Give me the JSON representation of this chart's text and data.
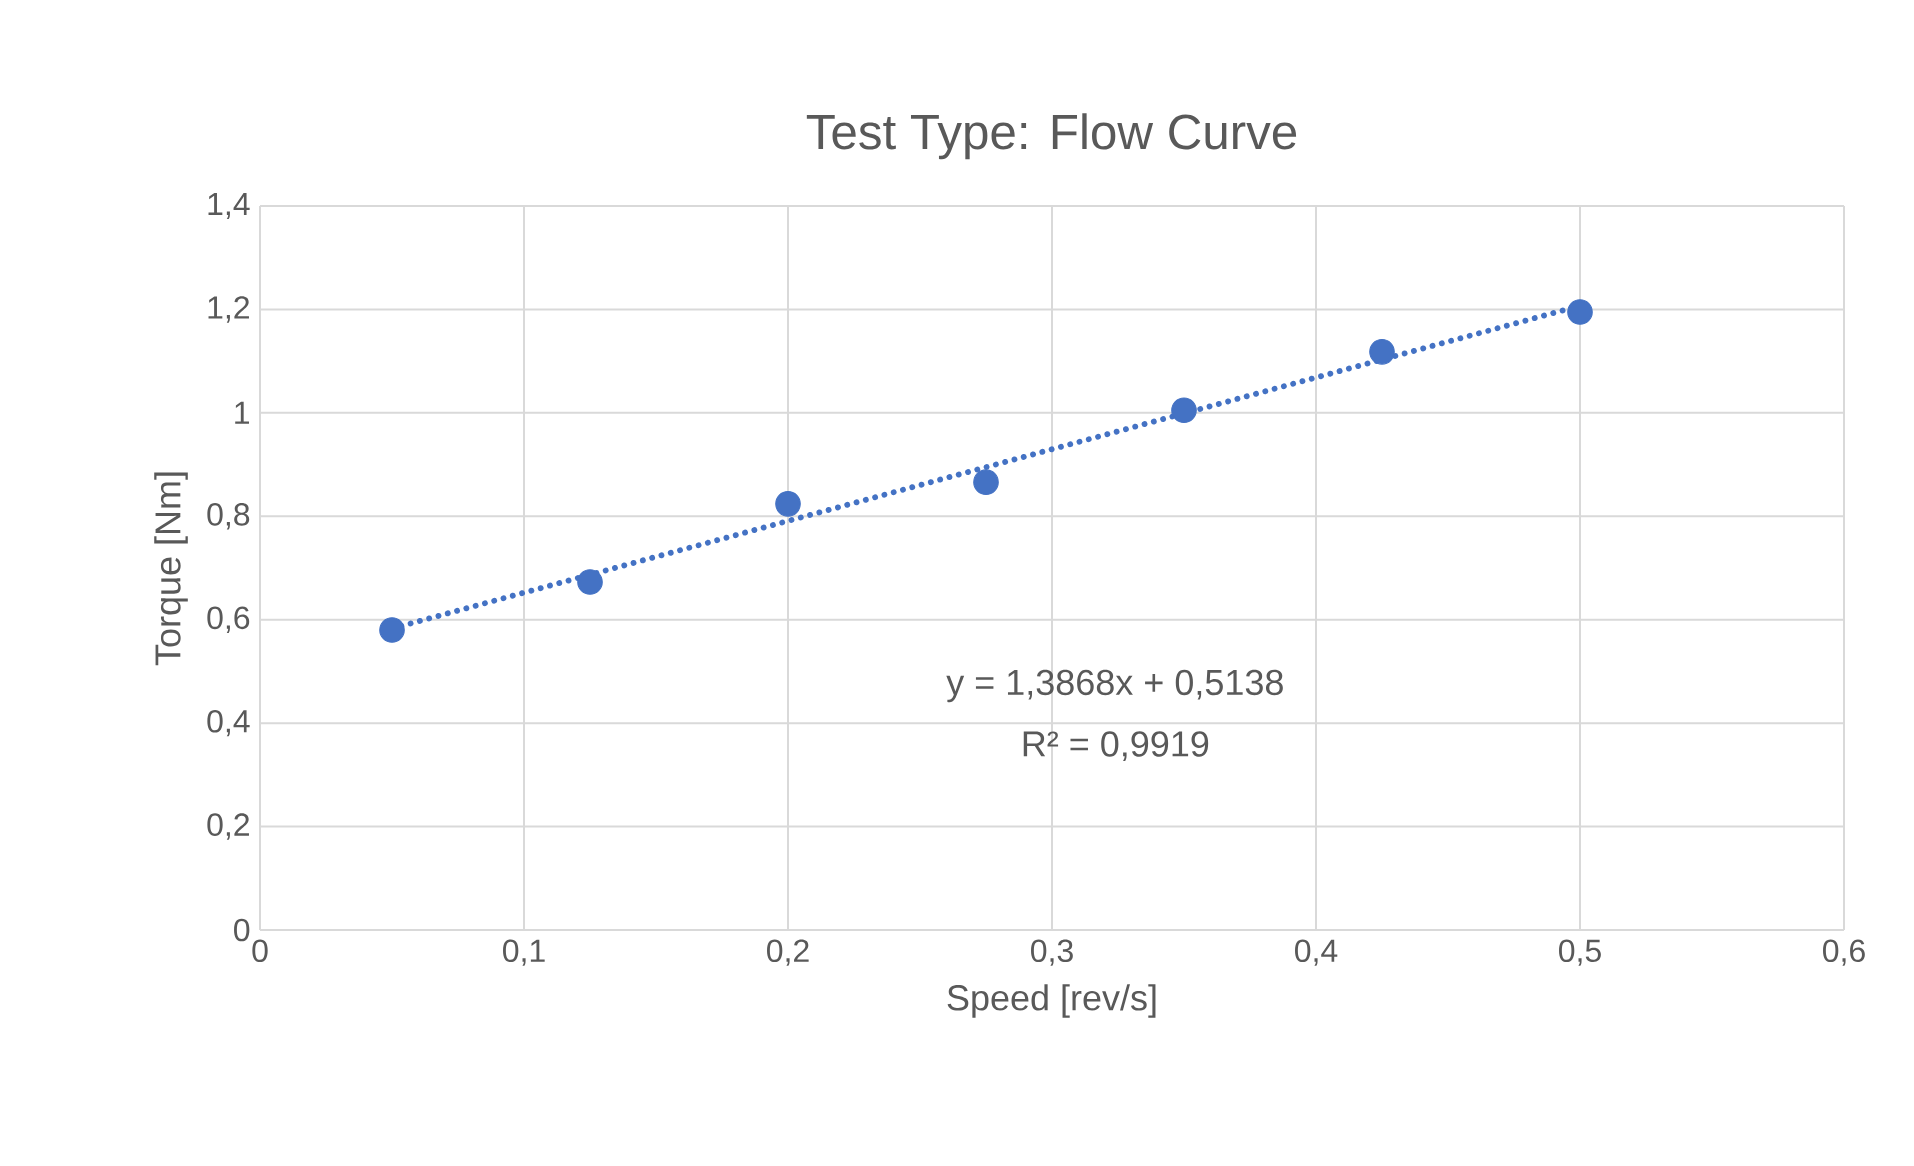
{
  "chart_data": {
    "type": "scatter",
    "title": "Test Type: Flow Curve",
    "xlabel": "Speed [rev/s]",
    "ylabel": "Torque [Nm]",
    "x": [
      0.05,
      0.125,
      0.2,
      0.275,
      0.35,
      0.425,
      0.5
    ],
    "series": [
      {
        "color": "#4472c4",
        "marker": "circle",
        "values": [
          0.58,
          0.673,
          0.824,
          0.866,
          1.005,
          1.118,
          1.195
        ]
      },
      {
        "type": "line",
        "color": "#4472c4",
        "marker": "none",
        "line_style": "dotted",
        "x": [
          0.05,
          0.5
        ],
        "values": [
          0.583,
          1.207
        ]
      }
    ],
    "annotations": [
      "y = 1,3868x + 0,5138",
      "R² = 0,9919"
    ],
    "xlim": [
      0,
      0.6
    ],
    "ylim": [
      0,
      1.4
    ],
    "xticks": [
      0,
      {
        "value": 0.1,
        "label": "0,1"
      },
      {
        "value": 0.2,
        "label": "0,2"
      },
      {
        "value": 0.3,
        "label": "0,3"
      },
      {
        "value": 0.4,
        "label": "0,4"
      },
      {
        "value": 0.5,
        "label": "0,5"
      },
      {
        "value": 0.6,
        "label": "0,6"
      }
    ],
    "yticks": [
      0,
      {
        "value": 0.2,
        "label": "0,2"
      },
      {
        "value": 0.4,
        "label": "0,4"
      },
      {
        "value": 0.6,
        "label": "0,6"
      },
      {
        "value": 0.8,
        "label": "0,8"
      },
      1,
      {
        "value": 1.2,
        "label": "1,2"
      },
      {
        "value": 1.4,
        "label": "1,4"
      }
    ],
    "grid": true
  }
}
